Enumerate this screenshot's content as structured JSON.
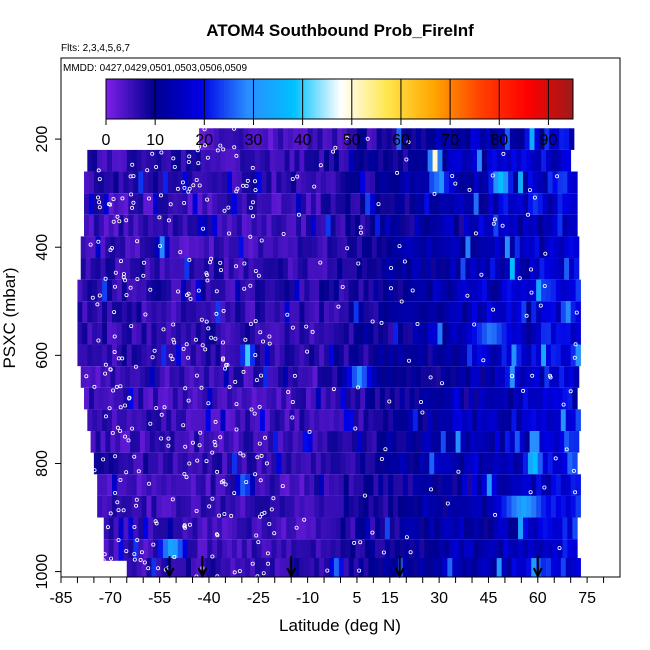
{
  "chart_data": {
    "type": "heatmap",
    "title": "ATOM4 Southbound Prob_FireInf",
    "flights_note": "Flts: 2,3,4,5,6,7",
    "dates_note": "MMDD: 0427,0429,0501,0503,0506,0509",
    "xlabel": "Latitude (deg N)",
    "ylabel": "PSXC (mbar)",
    "x_ticks": [
      -85,
      -70,
      -55,
      -40,
      -25,
      -10,
      5,
      15,
      30,
      45,
      60,
      75
    ],
    "x_tick_labels": [
      "-85",
      "-70",
      "-55",
      "-40",
      "-25",
      "-10",
      "5",
      "15",
      "30",
      "45",
      "60",
      "75"
    ],
    "y_ticks": [
      200,
      400,
      600,
      800,
      1000
    ],
    "y_tick_labels": [
      "200",
      "400",
      "600",
      "800",
      "1000"
    ],
    "xlim": [
      -85,
      85
    ],
    "ylim": [
      1010,
      50
    ],
    "y_reversed": true,
    "colorbar": {
      "range": [
        0,
        95
      ],
      "ticks": [
        0,
        10,
        20,
        30,
        40,
        50,
        60,
        70,
        80,
        90
      ],
      "tick_labels": [
        "0",
        "10",
        "20",
        "30",
        "40",
        "50",
        "60",
        "70",
        "80",
        "90"
      ],
      "placement": "top-inside",
      "colors": [
        "#7a1fe8",
        "#00008c",
        "#0000e6",
        "#2a8cff",
        "#00c0ff",
        "#ffffff",
        "#ffe64d",
        "#ffa500",
        "#ff4000",
        "#ff0000",
        "#9b1b1b"
      ]
    },
    "arrows_lat": [
      -52,
      -42,
      -15,
      18,
      60
    ],
    "pressure_levels": [
      {
        "p": 200,
        "lat_min": -43,
        "lat_max": 70,
        "base": 4
      },
      {
        "p": 240,
        "lat_min": -77,
        "lat_max": 70,
        "base": 6
      },
      {
        "p": 280,
        "lat_min": -78,
        "lat_max": 71,
        "base": 6
      },
      {
        "p": 320,
        "lat_min": -78,
        "lat_max": 71,
        "base": 5
      },
      {
        "p": 360,
        "lat_min": -78,
        "lat_max": 72,
        "base": 5
      },
      {
        "p": 400,
        "lat_min": -79,
        "lat_max": 72,
        "base": 5
      },
      {
        "p": 440,
        "lat_min": -79,
        "lat_max": 72,
        "base": 6
      },
      {
        "p": 480,
        "lat_min": -80,
        "lat_max": 72,
        "base": 6
      },
      {
        "p": 520,
        "lat_min": -80,
        "lat_max": 73,
        "base": 6
      },
      {
        "p": 560,
        "lat_min": -80,
        "lat_max": 73,
        "base": 6
      },
      {
        "p": 600,
        "lat_min": -80,
        "lat_max": 72,
        "base": 6
      },
      {
        "p": 640,
        "lat_min": -79,
        "lat_max": 72,
        "base": 5
      },
      {
        "p": 680,
        "lat_min": -78,
        "lat_max": 72,
        "base": 5
      },
      {
        "p": 720,
        "lat_min": -77,
        "lat_max": 72,
        "base": 5
      },
      {
        "p": 760,
        "lat_min": -76,
        "lat_max": 72,
        "base": 5
      },
      {
        "p": 800,
        "lat_min": -75,
        "lat_max": 72,
        "base": 6
      },
      {
        "p": 840,
        "lat_min": -74,
        "lat_max": 72,
        "base": 5
      },
      {
        "p": 880,
        "lat_min": -74,
        "lat_max": 72,
        "base": 5
      },
      {
        "p": 920,
        "lat_min": -72,
        "lat_max": 72,
        "base": 5
      },
      {
        "p": 960,
        "lat_min": -72,
        "lat_max": 72,
        "base": 5
      },
      {
        "p": 995,
        "lat_min": -65,
        "lat_max": 72,
        "base": 6
      }
    ],
    "hotspots": [
      {
        "lat": 28,
        "p": 240,
        "value": 50,
        "width": 2
      },
      {
        "lat": 48,
        "p": 280,
        "value": 38,
        "width": 4
      },
      {
        "lat": 30,
        "p": 280,
        "value": 30,
        "width": 3
      },
      {
        "lat": 58,
        "p": 320,
        "value": 25,
        "width": 3
      },
      {
        "lat": -55,
        "p": 400,
        "value": 28,
        "width": 2
      },
      {
        "lat": -29,
        "p": 600,
        "value": 40,
        "width": 2
      },
      {
        "lat": 5,
        "p": 640,
        "value": 30,
        "width": 5
      },
      {
        "lat": 45,
        "p": 560,
        "value": 28,
        "width": 10
      },
      {
        "lat": 58,
        "p": 800,
        "value": 42,
        "width": 3
      },
      {
        "lat": -30,
        "p": 840,
        "value": 28,
        "width": 3
      },
      {
        "lat": 55,
        "p": 880,
        "value": 33,
        "width": 10
      },
      {
        "lat": -52,
        "p": 960,
        "value": 35,
        "width": 5
      },
      {
        "lat": 42,
        "p": 600,
        "value": 20,
        "width": 6
      },
      {
        "lat": 35,
        "p": 720,
        "value": 20,
        "width": 4
      },
      {
        "lat": 20,
        "p": 400,
        "value": 15,
        "width": 10
      },
      {
        "lat": 55,
        "p": 480,
        "value": 18,
        "width": 8
      }
    ]
  }
}
